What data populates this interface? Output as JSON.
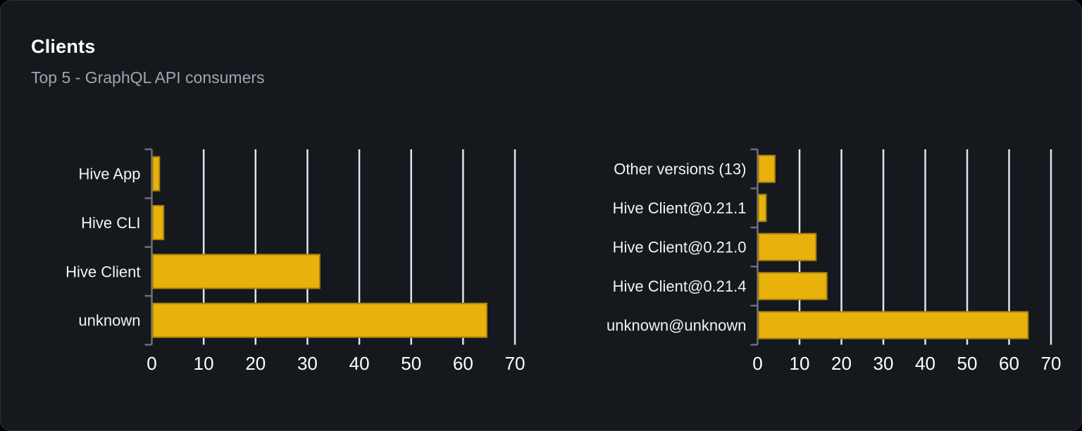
{
  "panel": {
    "title": "Clients",
    "subtitle": "Top 5 - GraphQL API consumers"
  },
  "colors": {
    "page_background": "#000000",
    "card_background": "#15181d",
    "card_border": "#2b313a",
    "bar": "#e9b10c",
    "bar_border": "#a5820f",
    "grid": "#dfe5ef",
    "axis": "#6e7078",
    "title": "#ffffff",
    "subtitle": "#a0a6af",
    "tick_label": "#ffffff",
    "category_label": "#f2f3f5"
  },
  "chart_data": [
    {
      "type": "bar",
      "orientation": "horizontal",
      "title": "",
      "xlabel": "",
      "ylabel": "",
      "categories": [
        "Hive App",
        "Hive CLI",
        "Hive Client",
        "unknown"
      ],
      "values": [
        1.3,
        2.1,
        32.2,
        64.4
      ],
      "xlim": [
        0,
        70
      ],
      "xticks": [
        0,
        10,
        20,
        30,
        40,
        50,
        60,
        70
      ],
      "grid": true,
      "legend": "none"
    },
    {
      "type": "bar",
      "orientation": "horizontal",
      "title": "",
      "xlabel": "",
      "ylabel": "",
      "categories": [
        "Other versions (13)",
        "Hive Client@0.21.1",
        "Hive Client@0.21.0",
        "Hive Client@0.21.4",
        "unknown@unknown"
      ],
      "values": [
        3.9,
        1.8,
        13.7,
        16.3,
        64.3
      ],
      "xlim": [
        0,
        70
      ],
      "xticks": [
        0,
        10,
        20,
        30,
        40,
        50,
        60,
        70
      ],
      "grid": true,
      "legend": "none"
    }
  ]
}
